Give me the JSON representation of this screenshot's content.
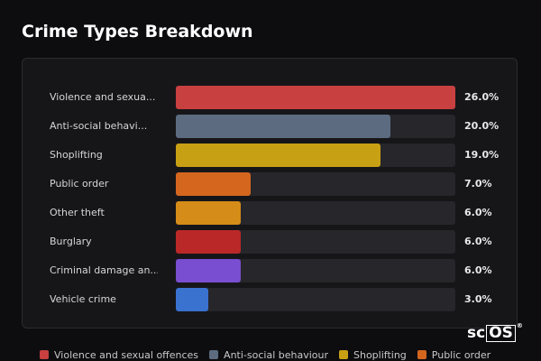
{
  "title": "Crime Types Breakdown",
  "chart_data": {
    "type": "bar",
    "orientation": "horizontal",
    "categories": [
      "Violence and sexua...",
      "Anti-social behavi...",
      "Shoplifting",
      "Public order",
      "Other theft",
      "Burglary",
      "Criminal damage an...",
      "Vehicle crime"
    ],
    "values": [
      26.0,
      20.0,
      19.0,
      7.0,
      6.0,
      6.0,
      6.0,
      3.0
    ],
    "value_labels": [
      "26.0%",
      "20.0%",
      "19.0%",
      "7.0%",
      "6.0%",
      "6.0%",
      "6.0%",
      "3.0%"
    ],
    "colors": [
      "#c8403f",
      "#5c6b80",
      "#c8a013",
      "#d4661e",
      "#d58c18",
      "#bb2828",
      "#7a4ed0",
      "#3a72d0"
    ],
    "xlim": [
      0,
      26
    ],
    "legend": {
      "position": "bottom",
      "entries": [
        {
          "label": "Violence and sexual offences",
          "color": "#c8403f"
        },
        {
          "label": "Anti-social behaviour",
          "color": "#5c6b80"
        },
        {
          "label": "Shoplifting",
          "color": "#c8a013"
        },
        {
          "label": "Public order",
          "color": "#d4661e"
        }
      ]
    }
  },
  "logo": {
    "text_a": "sc",
    "text_b": "OS",
    "mark": "®"
  }
}
